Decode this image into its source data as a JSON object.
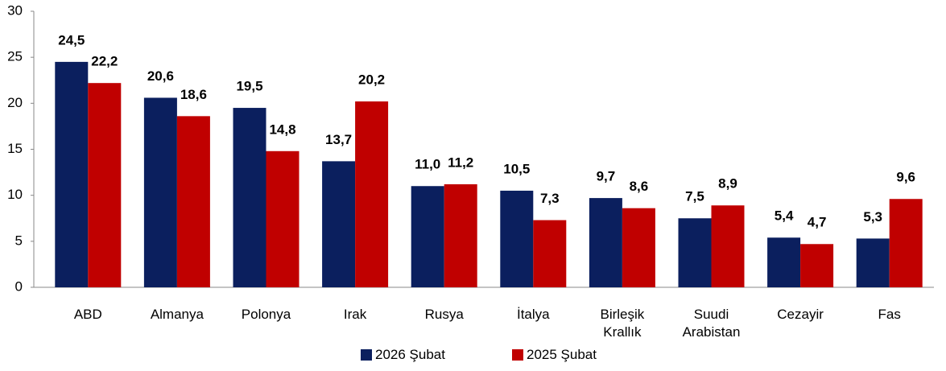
{
  "chart_data": {
    "type": "bar",
    "categories": [
      "ABD",
      "Almanya",
      "Polonya",
      "Irak",
      "Rusya",
      "İtalya",
      "Birleşik Krallık",
      "Suudi Arabistan",
      "Cezayir",
      "Fas"
    ],
    "series": [
      {
        "name": "2026 Şubat",
        "color": "#0b1f5e",
        "values": [
          24.5,
          20.6,
          19.5,
          13.7,
          11.0,
          10.5,
          9.7,
          7.5,
          5.4,
          5.3
        ],
        "value_labels": [
          "24,5",
          "20,6",
          "19,5",
          "13,7",
          "11,0",
          "10,5",
          "9,7",
          "7,5",
          "5,4",
          "5,3"
        ]
      },
      {
        "name": "2025 Şubat",
        "color": "#c00000",
        "values": [
          22.2,
          18.6,
          14.8,
          20.2,
          11.2,
          7.3,
          8.6,
          8.9,
          4.7,
          9.6
        ],
        "value_labels": [
          "22,2",
          "18,6",
          "14,8",
          "20,2",
          "11,2",
          "7,3",
          "8,6",
          "8,9",
          "4,7",
          "9,6"
        ]
      }
    ],
    "ylim": [
      0,
      30
    ],
    "yticks": [
      0,
      5,
      10,
      15,
      20,
      25,
      30
    ],
    "grid": false,
    "legend": "bottom"
  }
}
